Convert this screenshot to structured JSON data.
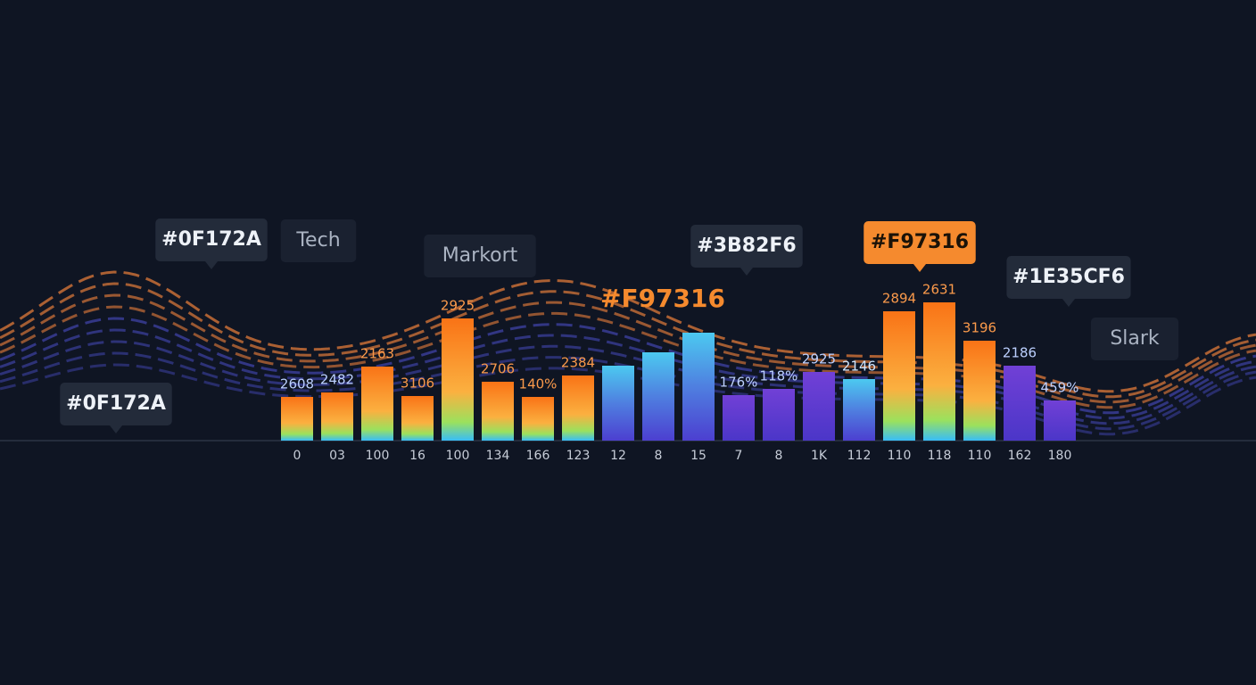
{
  "chart_data": {
    "type": "bar",
    "categories": [
      "0",
      "03",
      "100",
      "16",
      "100",
      "134",
      "166",
      "123",
      "12",
      "8",
      "15",
      "7",
      "8",
      "1K",
      "112",
      "110",
      "118",
      "110",
      "162",
      "180"
    ],
    "values": [
      49,
      54,
      83,
      50,
      137,
      66,
      49,
      73,
      84,
      99,
      121,
      51,
      58,
      77,
      69,
      145,
      155,
      112,
      84,
      45
    ],
    "bar_labels": [
      "2608",
      "2482",
      "2163",
      "3106",
      "2925",
      "2706",
      "140%",
      "2384",
      null,
      null,
      null,
      "176%",
      "118%",
      "2925",
      "2146",
      "2894",
      "2631",
      "3196",
      "2186",
      "459%"
    ],
    "colors": [
      "#f97316",
      "#f97316",
      "#f97316",
      "#f97316",
      "#f97316",
      "#f97316",
      "#f97316",
      "#f97316",
      "#3bb8f6",
      "#3bb8f6",
      "#3bb8f6",
      "#6d3fd0",
      "#6d3fd0",
      "#6d3fd0",
      "#3bb8f6",
      "#f97316",
      "#f97316",
      "#f97316",
      "#6d3fd0",
      "#6d3fd0"
    ],
    "ylim": [
      0,
      160
    ],
    "annotations": [
      {
        "text": "#0F172A",
        "style": "tag"
      },
      {
        "text": "Tech",
        "style": "plain"
      },
      {
        "text": "Markort",
        "style": "plain"
      },
      {
        "text": "#F97316",
        "style": "text"
      },
      {
        "text": "#3B82F6",
        "style": "tag"
      },
      {
        "text": "#F97316",
        "style": "highlight"
      },
      {
        "text": "#1E35CF6",
        "style": "tag"
      },
      {
        "text": "Slark",
        "style": "plain"
      },
      {
        "text": "#0F172A",
        "style": "tag"
      }
    ]
  }
}
